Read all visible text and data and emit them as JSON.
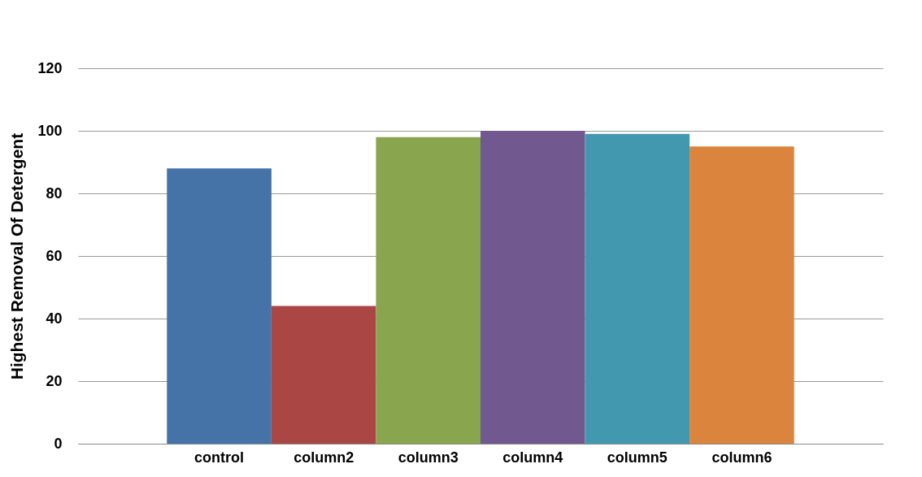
{
  "chart_data": {
    "type": "bar",
    "ylabel": "Highest Removal Of Detergent",
    "categories": [
      "control",
      "column2",
      "column3",
      "column4",
      "column5",
      "column6"
    ],
    "values": [
      88,
      44,
      98,
      100,
      99,
      95
    ],
    "colors": [
      "#4572a7",
      "#aa4643",
      "#89a54e",
      "#71588f",
      "#4198af",
      "#db843d"
    ],
    "ylim": [
      0,
      120
    ],
    "yticks": [
      0,
      20,
      40,
      60,
      80,
      100,
      120
    ],
    "grid": "y",
    "legend": false
  }
}
